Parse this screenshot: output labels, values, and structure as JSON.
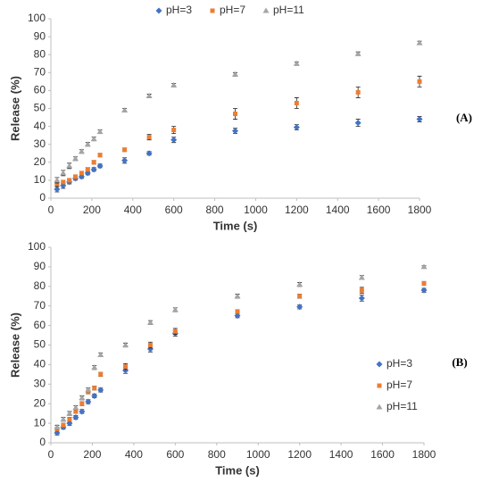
{
  "chart_data": [
    {
      "type": "scatter",
      "panel_label": "(A)",
      "x_label": "Time (s)",
      "y_label": "Release (%)",
      "x": [
        30,
        60,
        90,
        120,
        150,
        180,
        210,
        240,
        360,
        480,
        600,
        900,
        1200,
        1500,
        1800
      ],
      "xlim": [
        0,
        1800
      ],
      "xticks": [
        0,
        200,
        400,
        600,
        800,
        1000,
        1200,
        1400,
        1600,
        1800
      ],
      "ylim": [
        0,
        100
      ],
      "yticks": [
        0,
        10,
        20,
        30,
        40,
        50,
        60,
        70,
        80,
        90,
        100
      ],
      "legend": "top",
      "grid": false,
      "series": [
        {
          "name": "pH=3",
          "color": "#4472c4",
          "marker": "diamond",
          "values": [
            5,
            7,
            9,
            11,
            12,
            14,
            16,
            18,
            21,
            25,
            32.5,
            37.5,
            39.5,
            42,
            44
          ],
          "errors": [
            1.5,
            1.5,
            1,
            1,
            1,
            1,
            1,
            1,
            1.5,
            1,
            1.5,
            1.5,
            1.5,
            2,
            1.5
          ]
        },
        {
          "name": "pH=7",
          "color": "#ed7d31",
          "marker": "square",
          "values": [
            8,
            9,
            10,
            12,
            14,
            16,
            20,
            24,
            27,
            34,
            38,
            47,
            53,
            59,
            65
          ],
          "errors": [
            1.5,
            1,
            1,
            1,
            1,
            1,
            1,
            1,
            1,
            1.5,
            2,
            3,
            3,
            3,
            3
          ]
        },
        {
          "name": "pH=11",
          "color": "#a5a5a5",
          "marker": "triangle",
          "values": [
            10,
            14,
            18,
            22,
            26,
            30,
            33,
            37,
            49,
            57,
            63,
            69,
            75,
            80.5,
            86.5
          ],
          "errors": [
            1.5,
            1.5,
            1.5,
            1,
            1,
            1,
            1,
            1,
            1,
            1,
            1,
            1,
            1,
            1,
            1
          ]
        }
      ]
    },
    {
      "type": "scatter",
      "panel_label": "(B)",
      "x_label": "Time (s)",
      "y_label": "Release (%)",
      "x": [
        30,
        60,
        90,
        120,
        150,
        180,
        210,
        240,
        360,
        480,
        600,
        900,
        1200,
        1500,
        1800
      ],
      "xlim": [
        0,
        1800
      ],
      "xticks": [
        0,
        200,
        400,
        600,
        800,
        1000,
        1200,
        1400,
        1600,
        1800
      ],
      "ylim": [
        0,
        100
      ],
      "yticks": [
        0,
        10,
        20,
        30,
        40,
        50,
        60,
        70,
        80,
        90,
        100
      ],
      "legend": "right",
      "grid": false,
      "series": [
        {
          "name": "pH=3",
          "color": "#4472c4",
          "marker": "diamond",
          "values": [
            5,
            8,
            10,
            13,
            16,
            21,
            24,
            27,
            37,
            48,
            56,
            65,
            69.5,
            74,
            78
          ],
          "errors": [
            1,
            1,
            1,
            1,
            1,
            1,
            1,
            1,
            1.5,
            1.5,
            1.5,
            1,
            1,
            1.5,
            1
          ]
        },
        {
          "name": "pH=7",
          "color": "#ed7d31",
          "marker": "square",
          "values": [
            7,
            9,
            12,
            16,
            20,
            26,
            28,
            35,
            39,
            50,
            57,
            67,
            75,
            78,
            81.5
          ],
          "errors": [
            1,
            1,
            1,
            1,
            1,
            1,
            1,
            1,
            1.5,
            1.5,
            1.5,
            1,
            1,
            1.5,
            1
          ]
        },
        {
          "name": "pH=11",
          "color": "#a5a5a5",
          "marker": "triangle",
          "values": [
            8,
            12,
            15,
            18,
            23,
            27,
            38.5,
            45,
            50,
            61.5,
            68,
            75,
            81,
            84.5,
            90
          ],
          "errors": [
            1,
            1,
            1,
            1,
            1,
            1,
            1,
            1,
            1,
            1,
            1,
            1,
            1,
            1,
            0.5
          ]
        }
      ]
    }
  ]
}
